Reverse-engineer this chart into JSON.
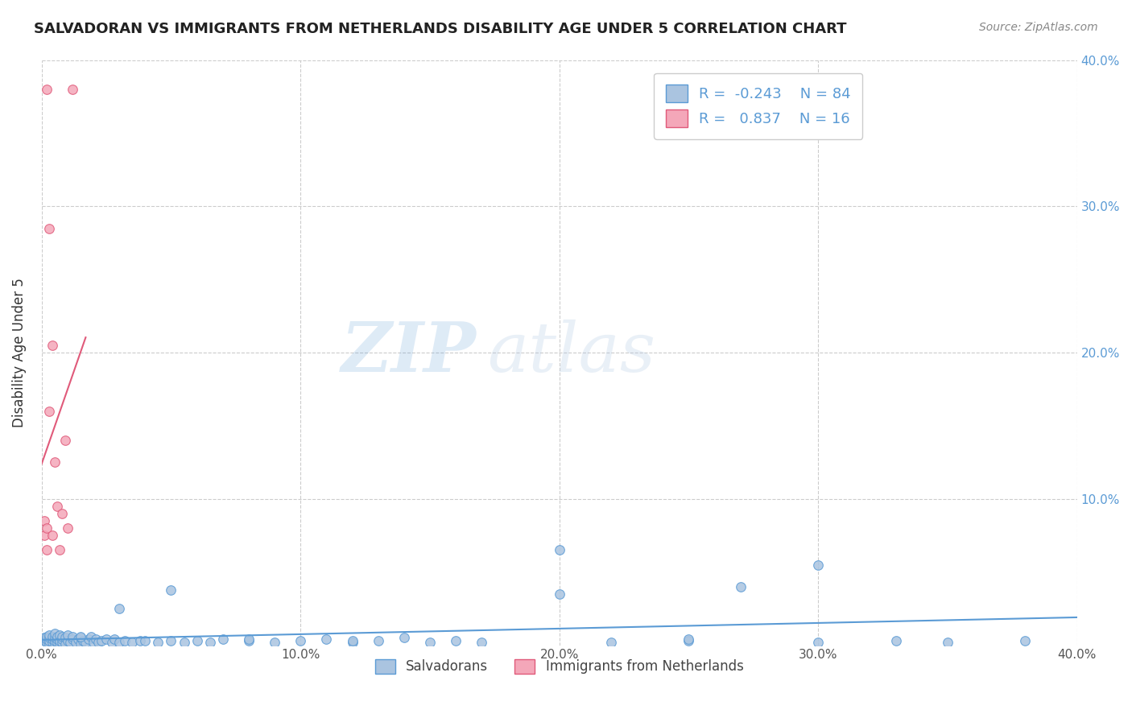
{
  "title": "SALVADORAN VS IMMIGRANTS FROM NETHERLANDS DISABILITY AGE UNDER 5 CORRELATION CHART",
  "source": "Source: ZipAtlas.com",
  "ylabel": "Disability Age Under 5",
  "xlim": [
    0.0,
    0.4
  ],
  "ylim": [
    0.0,
    0.4
  ],
  "xtick_labels": [
    "0.0%",
    "10.0%",
    "20.0%",
    "30.0%",
    "40.0%"
  ],
  "xtick_values": [
    0.0,
    0.1,
    0.2,
    0.3,
    0.4
  ],
  "ytick_labels": [
    "10.0%",
    "20.0%",
    "30.0%",
    "40.0%"
  ],
  "ytick_values": [
    0.1,
    0.2,
    0.3,
    0.4
  ],
  "blue_R": -0.243,
  "blue_N": 84,
  "pink_R": 0.837,
  "pink_N": 16,
  "blue_color": "#aac4e0",
  "pink_color": "#f4a7b9",
  "blue_line_color": "#5b9bd5",
  "pink_line_color": "#e05a7a",
  "legend_label_blue": "Salvadorans",
  "legend_label_pink": "Immigrants from Netherlands",
  "watermark_zip": "ZIP",
  "watermark_atlas": "atlas",
  "blue_x": [
    0.001,
    0.001,
    0.002,
    0.002,
    0.002,
    0.003,
    0.003,
    0.003,
    0.003,
    0.004,
    0.004,
    0.004,
    0.005,
    0.005,
    0.005,
    0.005,
    0.006,
    0.006,
    0.006,
    0.007,
    0.007,
    0.007,
    0.008,
    0.008,
    0.008,
    0.009,
    0.009,
    0.01,
    0.01,
    0.011,
    0.012,
    0.012,
    0.013,
    0.014,
    0.015,
    0.015,
    0.016,
    0.017,
    0.018,
    0.019,
    0.02,
    0.021,
    0.022,
    0.023,
    0.025,
    0.027,
    0.028,
    0.03,
    0.032,
    0.035,
    0.038,
    0.04,
    0.045,
    0.05,
    0.055,
    0.06,
    0.065,
    0.07,
    0.08,
    0.09,
    0.1,
    0.11,
    0.12,
    0.13,
    0.14,
    0.15,
    0.16,
    0.17,
    0.2,
    0.22,
    0.25,
    0.27,
    0.3,
    0.33,
    0.35,
    0.38,
    0.3,
    0.25,
    0.2,
    0.12,
    0.08,
    0.05,
    0.03,
    0.015
  ],
  "blue_y": [
    0.003,
    0.005,
    0.002,
    0.004,
    0.006,
    0.001,
    0.003,
    0.005,
    0.007,
    0.002,
    0.004,
    0.006,
    0.001,
    0.003,
    0.005,
    0.008,
    0.002,
    0.004,
    0.006,
    0.001,
    0.003,
    0.007,
    0.002,
    0.004,
    0.006,
    0.001,
    0.005,
    0.003,
    0.007,
    0.002,
    0.004,
    0.006,
    0.002,
    0.004,
    0.001,
    0.005,
    0.003,
    0.002,
    0.004,
    0.006,
    0.002,
    0.004,
    0.002,
    0.003,
    0.004,
    0.002,
    0.004,
    0.002,
    0.003,
    0.002,
    0.003,
    0.003,
    0.002,
    0.003,
    0.002,
    0.003,
    0.002,
    0.004,
    0.003,
    0.002,
    0.003,
    0.004,
    0.002,
    0.003,
    0.005,
    0.002,
    0.003,
    0.002,
    0.035,
    0.002,
    0.003,
    0.04,
    0.002,
    0.003,
    0.002,
    0.003,
    0.055,
    0.004,
    0.065,
    0.003,
    0.004,
    0.038,
    0.025,
    0.006
  ],
  "pink_x": [
    0.001,
    0.001,
    0.002,
    0.002,
    0.002,
    0.003,
    0.003,
    0.004,
    0.004,
    0.005,
    0.006,
    0.007,
    0.008,
    0.009,
    0.01,
    0.012
  ],
  "pink_y": [
    0.085,
    0.075,
    0.38,
    0.08,
    0.065,
    0.285,
    0.16,
    0.205,
    0.075,
    0.125,
    0.095,
    0.065,
    0.09,
    0.14,
    0.08,
    0.38
  ]
}
